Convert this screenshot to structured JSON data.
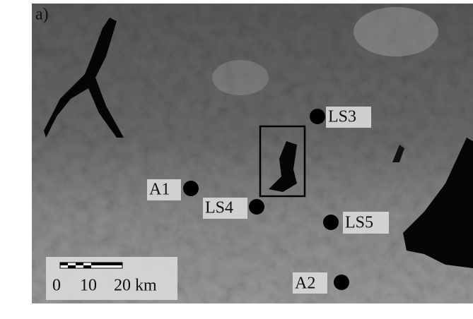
{
  "panel_label": "a)",
  "sites": [
    {
      "label": "LS3"
    },
    {
      "label": "A1"
    },
    {
      "label": "LS4"
    },
    {
      "label": "LS5"
    },
    {
      "label": "A2"
    }
  ],
  "scale_bar": {
    "labels": [
      "0",
      "10",
      "20 km"
    ]
  }
}
